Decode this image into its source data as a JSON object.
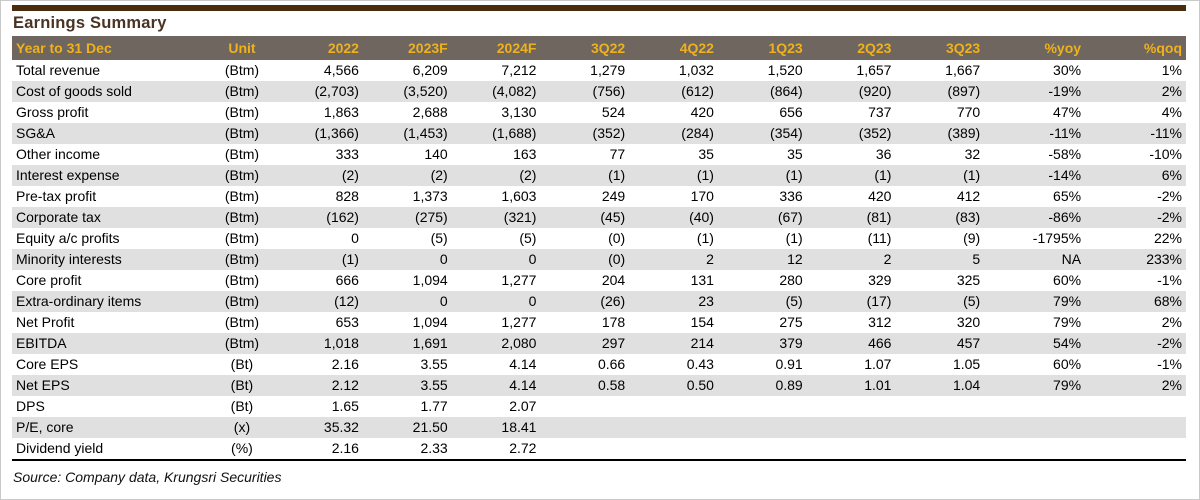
{
  "title": "Earnings Summary",
  "source_note": "Source: Company data, Krungsri Securities",
  "colors": {
    "top_bar": "#4a2d0f",
    "title_text": "#4a3323",
    "header_bg": "#6e665f",
    "header_text": "#efb11c",
    "stripe": "#e0e0e0",
    "body_text": "#000000"
  },
  "table": {
    "columns": [
      "Year to 31 Dec",
      "Unit",
      "2022",
      "2023F",
      "2024F",
      "3Q22",
      "4Q22",
      "1Q23",
      "2Q23",
      "3Q23",
      "%yoy",
      "%qoq"
    ],
    "rows": [
      {
        "label": "Total revenue",
        "unit": "(Btm)",
        "values": [
          "4,566",
          "6,209",
          "7,212",
          "1,279",
          "1,032",
          "1,520",
          "1,657",
          "1,667",
          "30%",
          "1%"
        ]
      },
      {
        "label": "Cost of goods sold",
        "unit": "(Btm)",
        "values": [
          "(2,703)",
          "(3,520)",
          "(4,082)",
          "(756)",
          "(612)",
          "(864)",
          "(920)",
          "(897)",
          "-19%",
          "2%"
        ]
      },
      {
        "label": "Gross profit",
        "unit": "(Btm)",
        "values": [
          "1,863",
          "2,688",
          "3,130",
          "524",
          "420",
          "656",
          "737",
          "770",
          "47%",
          "4%"
        ]
      },
      {
        "label": "SG&A",
        "unit": "(Btm)",
        "values": [
          "(1,366)",
          "(1,453)",
          "(1,688)",
          "(352)",
          "(284)",
          "(354)",
          "(352)",
          "(389)",
          "-11%",
          "-11%"
        ]
      },
      {
        "label": "Other income",
        "unit": "(Btm)",
        "values": [
          "333",
          "140",
          "163",
          "77",
          "35",
          "35",
          "36",
          "32",
          "-58%",
          "-10%"
        ]
      },
      {
        "label": "Interest expense",
        "unit": "(Btm)",
        "values": [
          "(2)",
          "(2)",
          "(2)",
          "(1)",
          "(1)",
          "(1)",
          "(1)",
          "(1)",
          "-14%",
          "6%"
        ]
      },
      {
        "label": "Pre-tax profit",
        "unit": "(Btm)",
        "values": [
          "828",
          "1,373",
          "1,603",
          "249",
          "170",
          "336",
          "420",
          "412",
          "65%",
          "-2%"
        ]
      },
      {
        "label": "Corporate tax",
        "unit": "(Btm)",
        "values": [
          "(162)",
          "(275)",
          "(321)",
          "(45)",
          "(40)",
          "(67)",
          "(81)",
          "(83)",
          "-86%",
          "-2%"
        ]
      },
      {
        "label": "Equity a/c profits",
        "unit": "(Btm)",
        "values": [
          "0",
          "(5)",
          "(5)",
          "(0)",
          "(1)",
          "(1)",
          "(11)",
          "(9)",
          "-1795%",
          "22%"
        ]
      },
      {
        "label": "Minority interests",
        "unit": "(Btm)",
        "values": [
          "(1)",
          "0",
          "0",
          "(0)",
          "2",
          "12",
          "2",
          "5",
          "NA",
          "233%"
        ]
      },
      {
        "label": "Core profit",
        "unit": "(Btm)",
        "values": [
          "666",
          "1,094",
          "1,277",
          "204",
          "131",
          "280",
          "329",
          "325",
          "60%",
          "-1%"
        ]
      },
      {
        "label": "Extra-ordinary items",
        "unit": "(Btm)",
        "values": [
          "(12)",
          "0",
          "0",
          "(26)",
          "23",
          "(5)",
          "(17)",
          "(5)",
          "79%",
          "68%"
        ]
      },
      {
        "label": "Net Profit",
        "unit": "(Btm)",
        "values": [
          "653",
          "1,094",
          "1,277",
          "178",
          "154",
          "275",
          "312",
          "320",
          "79%",
          "2%"
        ]
      },
      {
        "label": "EBITDA",
        "unit": "(Btm)",
        "values": [
          "1,018",
          "1,691",
          "2,080",
          "297",
          "214",
          "379",
          "466",
          "457",
          "54%",
          "-2%"
        ]
      },
      {
        "label": "Core EPS",
        "unit": "(Bt)",
        "values": [
          "2.16",
          "3.55",
          "4.14",
          "0.66",
          "0.43",
          "0.91",
          "1.07",
          "1.05",
          "60%",
          "-1%"
        ]
      },
      {
        "label": "Net EPS",
        "unit": "(Bt)",
        "values": [
          "2.12",
          "3.55",
          "4.14",
          "0.58",
          "0.50",
          "0.89",
          "1.01",
          "1.04",
          "79%",
          "2%"
        ]
      },
      {
        "label": "DPS",
        "unit": "(Bt)",
        "values": [
          "1.65",
          "1.77",
          "2.07",
          "",
          "",
          "",
          "",
          "",
          "",
          ""
        ]
      },
      {
        "label": "P/E, core",
        "unit": "(x)",
        "values": [
          "35.32",
          "21.50",
          "18.41",
          "",
          "",
          "",
          "",
          "",
          "",
          ""
        ]
      },
      {
        "label": "Dividend yield",
        "unit": "(%)",
        "values": [
          "2.16",
          "2.33",
          "2.72",
          "",
          "",
          "",
          "",
          "",
          "",
          ""
        ]
      }
    ]
  }
}
